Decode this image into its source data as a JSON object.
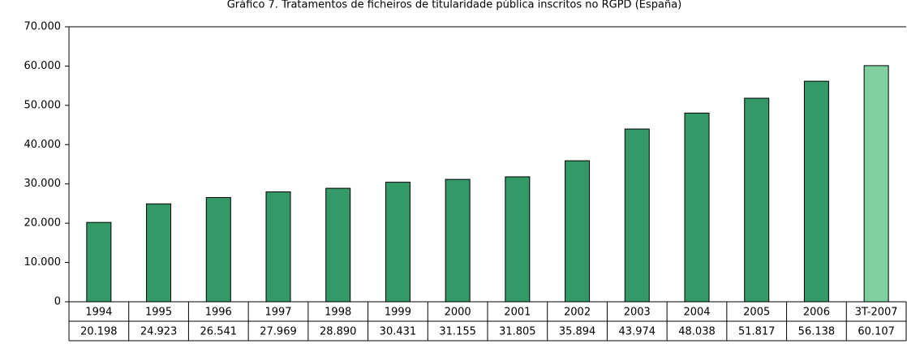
{
  "chart_data": {
    "type": "bar",
    "title": "Gráfico 7. Tratamentos de ficheiros de titularidade pública inscritos no RGPD (España)",
    "categories": [
      "1994",
      "1995",
      "1996",
      "1997",
      "1998",
      "1999",
      "2000",
      "2001",
      "2002",
      "2003",
      "2004",
      "2005",
      "2006",
      "3T-2007"
    ],
    "values": [
      20198,
      24923,
      26541,
      27969,
      28890,
      30431,
      31155,
      31805,
      35894,
      43974,
      48038,
      51817,
      56138,
      60107
    ],
    "value_labels": [
      "20.198",
      "24.923",
      "26.541",
      "27.969",
      "28.890",
      "30.431",
      "31.155",
      "31.805",
      "35.894",
      "43.974",
      "48.038",
      "51.817",
      "56.138",
      "60.107"
    ],
    "colors": [
      "#339966",
      "#339966",
      "#339966",
      "#339966",
      "#339966",
      "#339966",
      "#339966",
      "#339966",
      "#339966",
      "#339966",
      "#339966",
      "#339966",
      "#339966",
      "#7fcf9f"
    ],
    "ylim": [
      0,
      70000
    ],
    "yticks": [
      0,
      {
        "value": 10000,
        "label": "10.000"
      },
      {
        "value": 20000,
        "label": "20.000"
      },
      {
        "value": 30000,
        "label": "30.000"
      },
      {
        "value": 40000,
        "label": "40.000"
      },
      {
        "value": 50000,
        "label": "50.000"
      },
      {
        "value": 60000,
        "label": "60.000"
      },
      {
        "value": 70000,
        "label": "70.000"
      }
    ]
  }
}
